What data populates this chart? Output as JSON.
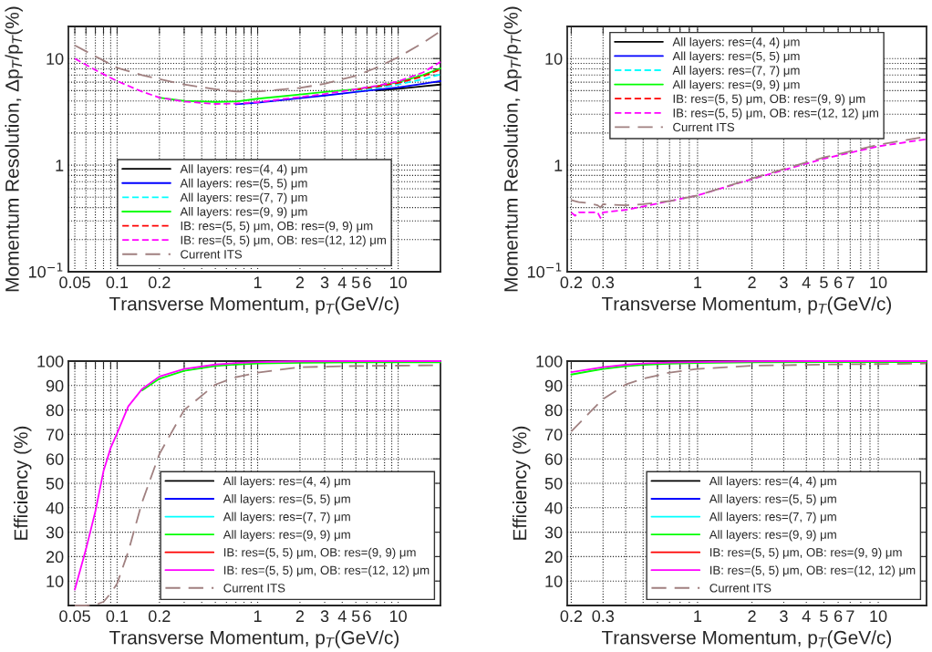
{
  "chart_data": [
    {
      "type": "line",
      "xlabel": "Transverse Momentum, p$_{T}$(GeV/c)",
      "ylabel": "Momentum Resolution, Δp$_{T}$/p$_{T}$(%)",
      "log": "xy",
      "grid": true,
      "legend": "bottom",
      "xlim": [
        0.045,
        20
      ],
      "ylim": [
        0.1,
        20
      ],
      "xticks": [
        0.05,
        {
          "value": 0.06,
          "label": null
        },
        {
          "value": 0.07,
          "label": null
        },
        {
          "value": 0.08,
          "label": null
        },
        {
          "value": 0.09,
          "label": null
        },
        0.1,
        0.2,
        {
          "value": 0.3,
          "label": null
        },
        {
          "value": 0.4,
          "label": null
        },
        {
          "value": 0.5,
          "label": null
        },
        {
          "value": 0.6,
          "label": null
        },
        {
          "value": 0.7,
          "label": null
        },
        {
          "value": 0.8,
          "label": null
        },
        {
          "value": 0.9,
          "label": null
        },
        1,
        2,
        3,
        4,
        5,
        6,
        {
          "value": 7,
          "label": null
        },
        {
          "value": 8,
          "label": null
        },
        {
          "value": 9,
          "label": null
        },
        10
      ],
      "yticks": [
        {
          "value": 0.1,
          "label": "10$^{−1}$"
        },
        {
          "value": 0.2,
          "label": null
        },
        {
          "value": 0.3,
          "label": null
        },
        {
          "value": 0.4,
          "label": null
        },
        {
          "value": 0.5,
          "label": null
        },
        {
          "value": 0.6,
          "label": null
        },
        {
          "value": 0.7,
          "label": null
        },
        {
          "value": 0.8,
          "label": null
        },
        {
          "value": 0.9,
          "label": null
        },
        1,
        {
          "value": 2,
          "label": null
        },
        {
          "value": 3,
          "label": null
        },
        {
          "value": 4,
          "label": null
        },
        {
          "value": 5,
          "label": null
        },
        {
          "value": 6,
          "label": null
        },
        {
          "value": 7,
          "label": null
        },
        {
          "value": 8,
          "label": null
        },
        {
          "value": 9,
          "label": null
        },
        10
      ],
      "x": [
        0.05,
        0.07,
        0.1,
        0.15,
        0.2,
        0.3,
        0.5,
        0.7,
        1,
        2,
        3,
        5,
        7,
        10,
        15,
        20
      ],
      "series": [
        {
          "name": "All layers: res=(4, 4) μm",
          "color": "#000000",
          "line_style": "solid",
          "values": [
            null,
            null,
            null,
            null,
            null,
            null,
            null,
            null,
            null,
            null,
            null,
            null,
            5.0,
            5.2,
            5.5,
            5.7
          ]
        },
        {
          "name": "All layers: res=(5, 5) μm",
          "color": "#0000ff",
          "line_style": "solid",
          "values": [
            null,
            null,
            null,
            null,
            null,
            null,
            null,
            3.72,
            3.85,
            4.25,
            4.5,
            4.85,
            5.1,
            5.35,
            5.8,
            6.15
          ]
        },
        {
          "name": "All layers: res=(7, 7) μm",
          "color": "#00ffff",
          "line_style": "dashed",
          "values": [
            null,
            null,
            null,
            null,
            null,
            null,
            null,
            null,
            null,
            null,
            null,
            5.0,
            5.3,
            5.7,
            6.4,
            7.1
          ]
        },
        {
          "name": "All layers: res=(9, 9) μm",
          "color": "#00ff00",
          "line_style": "solid",
          "values": [
            null,
            null,
            null,
            null,
            4.3,
            4.0,
            3.92,
            3.95,
            4.2,
            4.6,
            4.85,
            5.15,
            5.5,
            6.0,
            7.0,
            8.1
          ]
        },
        {
          "name": "IB: res=(5, 5) μm, OB: res=(9, 9) μm",
          "color": "#ff0000",
          "line_style": "dashed",
          "values": [
            null,
            null,
            null,
            null,
            null,
            null,
            null,
            null,
            null,
            null,
            null,
            5.1,
            5.45,
            5.9,
            6.8,
            7.9
          ]
        },
        {
          "name": "IB: res=(5, 5) μm, OB: res=(12, 12) μm",
          "color": "#ff00ff",
          "line_style": "dashed",
          "values": [
            10,
            7.8,
            6.15,
            4.9,
            4.3,
            3.95,
            3.75,
            3.78,
            3.9,
            4.35,
            4.65,
            5.15,
            5.55,
            6.1,
            7.4,
            9.3
          ]
        },
        {
          "name": "Current ITS",
          "color": "#a08080",
          "line_style": "longdash",
          "values": [
            13.3,
            10.5,
            8.2,
            7.0,
            6.4,
            5.7,
            5.15,
            4.9,
            4.9,
            5.3,
            5.8,
            6.9,
            8.2,
            10.3,
            14,
            18
          ]
        }
      ]
    },
    {
      "type": "line",
      "xlabel": "Transverse Momentum, p$_{T}$(GeV/c)",
      "ylabel": "Momentum Resolution, Δp$_{T}$/p$_{T}$(%)",
      "log": "xy",
      "grid": true,
      "legend": "top",
      "xlim": [
        0.19,
        18.5
      ],
      "ylim": [
        0.1,
        20
      ],
      "xticks": [
        0.2,
        0.3,
        {
          "value": 0.4,
          "label": null
        },
        {
          "value": 0.5,
          "label": null
        },
        {
          "value": 0.6,
          "label": null
        },
        {
          "value": 0.7,
          "label": null
        },
        {
          "value": 0.8,
          "label": null
        },
        {
          "value": 0.9,
          "label": null
        },
        1,
        2,
        3,
        4,
        5,
        6,
        7,
        {
          "value": 8,
          "label": null
        },
        {
          "value": 9,
          "label": null
        },
        10
      ],
      "yticks": [
        {
          "value": 0.1,
          "label": "10$^{−1}$"
        },
        {
          "value": 0.2,
          "label": null
        },
        {
          "value": 0.3,
          "label": null
        },
        {
          "value": 0.4,
          "label": null
        },
        {
          "value": 0.5,
          "label": null
        },
        {
          "value": 0.6,
          "label": null
        },
        {
          "value": 0.7,
          "label": null
        },
        {
          "value": 0.8,
          "label": null
        },
        {
          "value": 0.9,
          "label": null
        },
        1,
        {
          "value": 2,
          "label": null
        },
        {
          "value": 3,
          "label": null
        },
        {
          "value": 4,
          "label": null
        },
        {
          "value": 5,
          "label": null
        },
        {
          "value": 6,
          "label": null
        },
        {
          "value": 7,
          "label": null
        },
        {
          "value": 8,
          "label": null
        },
        {
          "value": 9,
          "label": null
        },
        10
      ],
      "x": [
        0.2,
        0.21,
        0.22,
        0.25,
        0.28,
        0.29,
        0.3,
        0.4,
        0.5,
        0.7,
        1,
        2,
        3,
        5,
        10,
        18.4
      ],
      "series": [
        {
          "name": "All layers: res=(4, 4) μm",
          "color": "#000000",
          "line_style": "solid",
          "values": [
            null,
            null,
            null,
            null,
            null,
            null,
            null,
            null,
            null,
            null,
            null,
            null,
            null,
            null,
            null,
            null
          ]
        },
        {
          "name": "All layers: res=(5, 5) μm",
          "color": "#0000ff",
          "line_style": "solid",
          "values": [
            null,
            null,
            null,
            null,
            null,
            null,
            null,
            null,
            null,
            null,
            null,
            null,
            null,
            null,
            null,
            null
          ]
        },
        {
          "name": "All layers: res=(7, 7) μm",
          "color": "#00ffff",
          "line_style": "dashed",
          "values": [
            null,
            null,
            null,
            null,
            null,
            null,
            null,
            null,
            null,
            null,
            null,
            null,
            null,
            null,
            null,
            null
          ]
        },
        {
          "name": "All layers: res=(9, 9) μm",
          "color": "#00ff00",
          "line_style": "solid",
          "values": [
            null,
            null,
            null,
            null,
            null,
            null,
            null,
            null,
            null,
            null,
            null,
            null,
            null,
            null,
            null,
            null
          ]
        },
        {
          "name": "IB: res=(5, 5) μm, OB: res=(9, 9) μm",
          "color": "#ff0000",
          "line_style": "dashed",
          "values": [
            null,
            null,
            null,
            null,
            null,
            null,
            null,
            null,
            null,
            null,
            null,
            null,
            null,
            null,
            null,
            null
          ]
        },
        {
          "name": "IB: res=(5, 5) μm, OB: res=(12, 12) μm",
          "color": "#ff00ff",
          "line_style": "dashed",
          "values": [
            0.36,
            0.335,
            0.36,
            0.36,
            0.36,
            0.32,
            0.36,
            0.38,
            0.41,
            0.46,
            0.52,
            0.74,
            0.9,
            1.15,
            1.5,
            1.75
          ]
        },
        {
          "name": "Current ITS",
          "color": "#a08080",
          "line_style": "longdash",
          "values": [
            0.47,
            0.46,
            0.45,
            0.44,
            0.42,
            0.4,
            0.43,
            0.42,
            0.43,
            0.46,
            0.52,
            0.75,
            0.92,
            1.18,
            1.55,
            1.85
          ]
        }
      ]
    },
    {
      "type": "line",
      "xlabel": "Transverse Momentum, p$_{T}$(GeV/c)",
      "ylabel": "Efficiency (%)",
      "log": "x",
      "grid": true,
      "legend": "bottom right",
      "xlim": [
        0.045,
        20
      ],
      "ylim": [
        0,
        100
      ],
      "xticks": [
        0.05,
        {
          "value": 0.06,
          "label": null
        },
        {
          "value": 0.07,
          "label": null
        },
        {
          "value": 0.08,
          "label": null
        },
        {
          "value": 0.09,
          "label": null
        },
        0.1,
        0.2,
        {
          "value": 0.3,
          "label": null
        },
        {
          "value": 0.4,
          "label": null
        },
        {
          "value": 0.5,
          "label": null
        },
        {
          "value": 0.6,
          "label": null
        },
        {
          "value": 0.7,
          "label": null
        },
        {
          "value": 0.8,
          "label": null
        },
        {
          "value": 0.9,
          "label": null
        },
        1,
        2,
        3,
        4,
        5,
        6,
        {
          "value": 7,
          "label": null
        },
        {
          "value": 8,
          "label": null
        },
        {
          "value": 9,
          "label": null
        },
        10
      ],
      "yticks": [
        10,
        20,
        30,
        40,
        50,
        60,
        70,
        80,
        90,
        100
      ],
      "x": [
        0.05,
        0.06,
        0.07,
        0.08,
        0.09,
        0.1,
        0.12,
        0.15,
        0.2,
        0.3,
        0.5,
        0.7,
        1,
        2,
        5,
        20
      ],
      "series": [
        {
          "name": "All layers: res=(4, 4) μm",
          "color": "#000000",
          "line_style": "solid",
          "values": [
            null,
            null,
            null,
            null,
            null,
            null,
            null,
            null,
            null,
            null,
            null,
            null,
            null,
            null,
            null,
            null
          ]
        },
        {
          "name": "All layers: res=(5, 5) μm",
          "color": "#0000ff",
          "line_style": "solid",
          "values": [
            null,
            null,
            null,
            null,
            null,
            null,
            null,
            null,
            null,
            null,
            null,
            null,
            null,
            null,
            null,
            null
          ]
        },
        {
          "name": "All layers: res=(7, 7) μm",
          "color": "#00ffff",
          "line_style": "solid",
          "values": [
            null,
            null,
            null,
            null,
            null,
            null,
            null,
            null,
            null,
            null,
            null,
            null,
            null,
            null,
            null,
            null
          ]
        },
        {
          "name": "All layers: res=(9, 9) μm",
          "color": "#00ff00",
          "line_style": "solid",
          "values": [
            null,
            null,
            null,
            null,
            null,
            null,
            null,
            88,
            92.8,
            96,
            98,
            98.6,
            99,
            99.3,
            99.5,
            99.5
          ]
        },
        {
          "name": "IB: res=(5, 5) μm, OB: res=(9, 9) μm",
          "color": "#ff0000",
          "line_style": "solid",
          "values": [
            null,
            null,
            null,
            null,
            null,
            null,
            null,
            null,
            null,
            null,
            null,
            null,
            null,
            null,
            null,
            null
          ]
        },
        {
          "name": "IB: res=(5, 5) μm, OB: res=(12, 12) μm",
          "color": "#ff00ff",
          "line_style": "solid",
          "values": [
            6.5,
            23,
            38.5,
            55,
            64.5,
            70.5,
            81.5,
            88.5,
            93.7,
            96.8,
            98.6,
            99.2,
            99.6,
            99.9,
            100,
            100
          ]
        },
        {
          "name": "Current ITS",
          "color": "#a08080",
          "line_style": "longdash",
          "values": [
            0,
            0,
            0.3,
            1.5,
            5,
            9,
            22,
            42,
            62,
            80,
            90.4,
            93.4,
            95.3,
            97.5,
            98,
            98.3
          ]
        }
      ]
    },
    {
      "type": "line",
      "xlabel": "Transverse Momentum, p$_{T}$(GeV/c)",
      "ylabel": "Efficiency (%)",
      "log": "x",
      "grid": true,
      "legend": "bottom right",
      "xlim": [
        0.19,
        18.5
      ],
      "ylim": [
        0,
        100
      ],
      "xticks": [
        0.2,
        0.3,
        {
          "value": 0.4,
          "label": null
        },
        {
          "value": 0.5,
          "label": null
        },
        {
          "value": 0.6,
          "label": null
        },
        {
          "value": 0.7,
          "label": null
        },
        {
          "value": 0.8,
          "label": null
        },
        {
          "value": 0.9,
          "label": null
        },
        1,
        2,
        3,
        4,
        5,
        6,
        7,
        {
          "value": 8,
          "label": null
        },
        {
          "value": 9,
          "label": null
        },
        10
      ],
      "yticks": [
        10,
        20,
        30,
        40,
        50,
        60,
        70,
        80,
        90,
        100
      ],
      "x": [
        0.2,
        0.25,
        0.3,
        0.4,
        0.5,
        0.7,
        1,
        2,
        5,
        18.4
      ],
      "series": [
        {
          "name": "All layers: res=(4, 4) μm",
          "color": "#000000",
          "line_style": "solid",
          "values": [
            null,
            null,
            null,
            null,
            null,
            null,
            null,
            null,
            null,
            null
          ]
        },
        {
          "name": "All layers: res=(5, 5) μm",
          "color": "#0000ff",
          "line_style": "solid",
          "values": [
            null,
            null,
            null,
            null,
            null,
            null,
            null,
            null,
            null,
            null
          ]
        },
        {
          "name": "All layers: res=(7, 7) μm",
          "color": "#00ffff",
          "line_style": "solid",
          "values": [
            null,
            null,
            null,
            null,
            null,
            null,
            null,
            null,
            null,
            null
          ]
        },
        {
          "name": "All layers: res=(9, 9) μm",
          "color": "#00ff00",
          "line_style": "solid",
          "values": [
            94.5,
            95.8,
            96.8,
            97.9,
            98.5,
            98.9,
            99.2,
            99.5,
            99.6,
            99.6
          ]
        },
        {
          "name": "IB: res=(5, 5) μm, OB: res=(9, 9) μm",
          "color": "#ff0000",
          "line_style": "solid",
          "values": [
            null,
            null,
            null,
            null,
            null,
            null,
            null,
            null,
            null,
            null
          ]
        },
        {
          "name": "IB: res=(5, 5) μm, OB: res=(12, 12) μm",
          "color": "#ff00ff",
          "line_style": "solid",
          "values": [
            95.5,
            96.6,
            97.5,
            98.5,
            99,
            99.4,
            99.6,
            99.9,
            100,
            100
          ]
        },
        {
          "name": "Current ITS",
          "color": "#a08080",
          "line_style": "longdash",
          "values": [
            71.2,
            78.6,
            84.5,
            90.4,
            92.8,
            95.3,
            96.8,
            98.1,
            98.6,
            99
          ]
        }
      ]
    }
  ]
}
